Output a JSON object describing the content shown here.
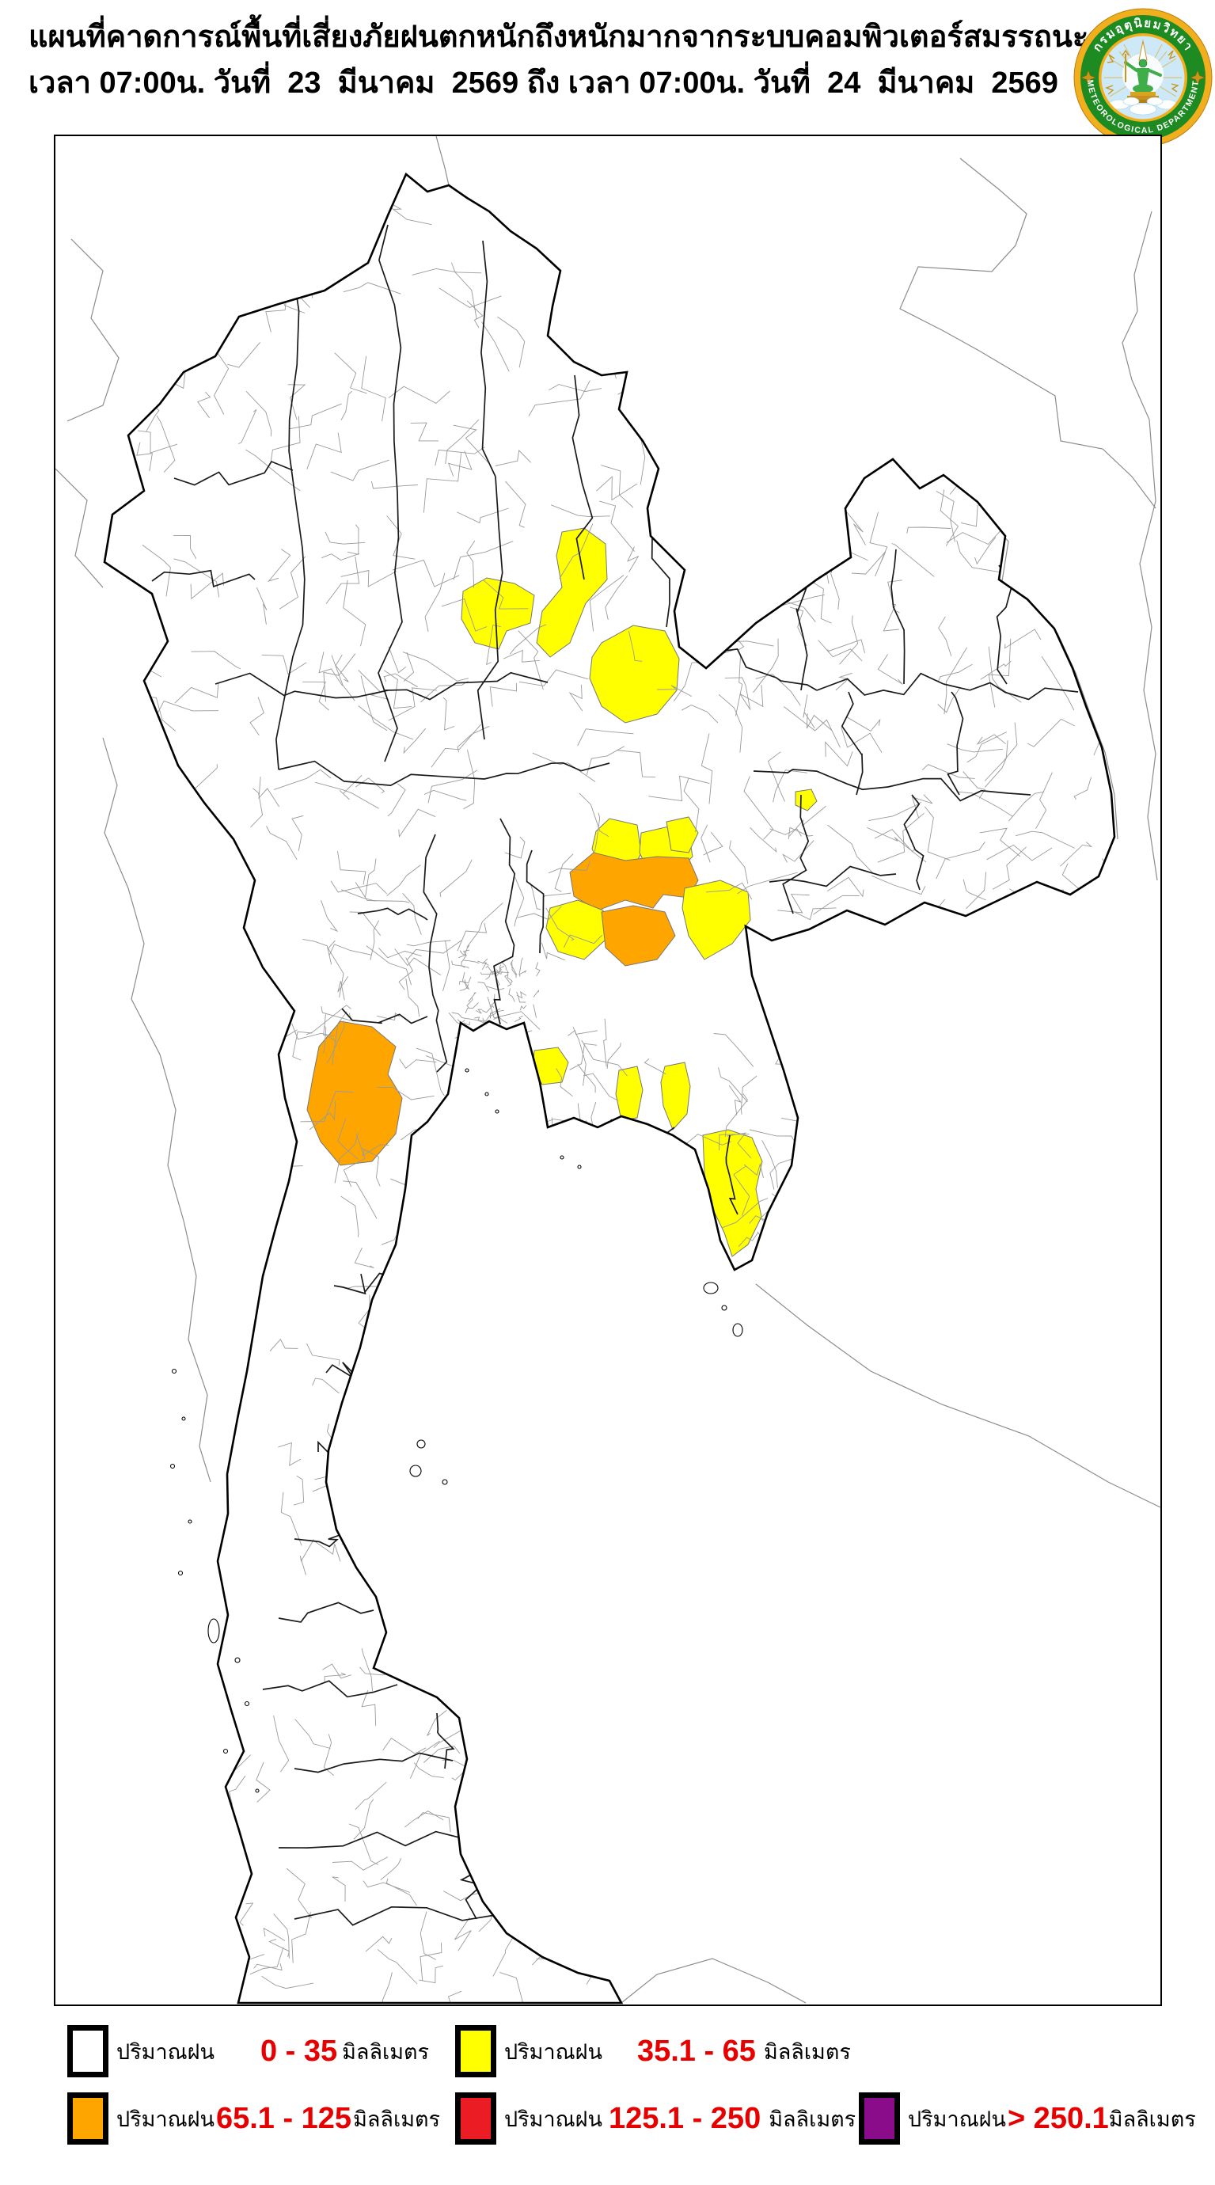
{
  "header": {
    "title_line1": "แผนที่คาดการณ์พื้นที่เสี่ยงภัยฝนตกหนักถึงหนักมากจากระบบคอมพิวเตอร์สมรรถนะสูง",
    "title_line2": "เวลา 07:00น. วันที่  23  มีนาคม  2569 ถึง เวลา 07:00น. วันที่  24  มีนาคม  2569"
  },
  "logo": {
    "text_top": "กรมอุตุนิยมวิทยา",
    "text_bottom": "METEOROLOGICAL DEPARTMENT",
    "gold": "#F2AF1D",
    "green": "#1D8A22",
    "sky": "#CDE9F8",
    "figure_green": "#3FAE49",
    "base_gold": "#D9A520"
  },
  "map": {
    "land_color": "#FFFFFF",
    "outline_color": "#000000",
    "province_line_color": "#1a1a1a",
    "district_line_color": "#9a9a9a",
    "neighbor_line_color": "#8c8c8c"
  },
  "colors": {
    "rain_0_35": "#FFFFFF",
    "rain_35_65": "#FFFF00",
    "rain_65_125": "#FFA500",
    "rain_125_250": "#EC1C24",
    "rain_over_250": "#8A0C8A",
    "range_text": "#E60000"
  },
  "legend": {
    "items": [
      {
        "label": "ปริมาณฝน",
        "range": "0 - 35",
        "unit": "มิลลิเมตร",
        "color": "#FFFFFF"
      },
      {
        "label": "ปริมาณฝน",
        "range": "35.1 - 65",
        "unit": "มิลลิเมตร",
        "color": "#FFFF00"
      },
      {
        "label": "ปริมาณฝน",
        "range": "65.1 - 125",
        "unit": "มิลลิเมตร",
        "color": "#FFA500"
      },
      {
        "label": "ปริมาณฝน",
        "range": "125.1 - 250",
        "unit": "มิลลิเมตร",
        "color": "#EC1C24"
      },
      {
        "label": "ปริมาณฝน",
        "range": "> 250.1",
        "unit": "มิลลิเมตร",
        "color": "#8A0C8A"
      }
    ]
  }
}
